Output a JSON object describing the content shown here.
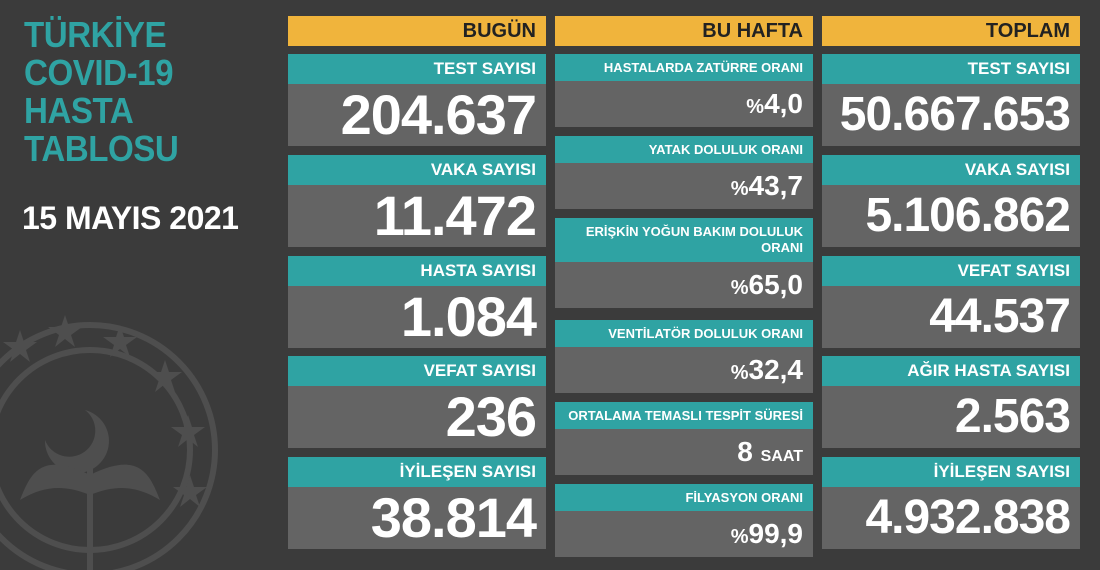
{
  "title": [
    "TÜRKİYE",
    "COVID-19",
    "HASTA",
    "TABLOSU"
  ],
  "date": "15 MAYIS 2021",
  "columns": {
    "today": {
      "header": "BUGÜN",
      "cards": [
        {
          "label": "TEST SAYISI",
          "value": "204.637"
        },
        {
          "label": "VAKA SAYISI",
          "value": "11.472"
        },
        {
          "label": "HASTA SAYISI",
          "value": "1.084"
        },
        {
          "label": "VEFAT SAYISI",
          "value": "236"
        },
        {
          "label": "İYİLEŞEN SAYISI",
          "value": "38.814"
        }
      ]
    },
    "week": {
      "header": "BU HAFTA",
      "cards": [
        {
          "label": "HASTALARDA ZATÜRRE ORANI",
          "prefix": "%",
          "value": "4,0",
          "unit": ""
        },
        {
          "label": "YATAK DOLULUK ORANI",
          "prefix": "%",
          "value": "43,7",
          "unit": ""
        },
        {
          "label": "ERİŞKİN YOĞUN BAKIM DOLULUK ORANI",
          "prefix": "%",
          "value": "65,0",
          "unit": ""
        },
        {
          "label": "VENTİLATÖR DOLULUK ORANI",
          "prefix": "%",
          "value": "32,4",
          "unit": ""
        },
        {
          "label": "ORTALAMA TEMASLI TESPİT SÜRESİ",
          "prefix": "",
          "value": "8",
          "unit": "SAAT"
        },
        {
          "label": "FİLYASYON ORANI",
          "prefix": "%",
          "value": "99,9",
          "unit": ""
        }
      ]
    },
    "total": {
      "header": "TOPLAM",
      "cards": [
        {
          "label": "TEST SAYISI",
          "value": "50.667.653"
        },
        {
          "label": "VAKA SAYISI",
          "value": "5.106.862"
        },
        {
          "label": "VEFAT SAYISI",
          "value": "44.537"
        },
        {
          "label": "AĞIR HASTA SAYISI",
          "value": "2.563"
        },
        {
          "label": "İYİLEŞEN SAYISI",
          "value": "4.932.838"
        }
      ]
    }
  },
  "colors": {
    "teal": "#2fa3a3",
    "orange": "#f0b43c",
    "card_gray": "#646464",
    "background": "#3b3b3b"
  },
  "emblem": "ministry-of-health-emblem"
}
